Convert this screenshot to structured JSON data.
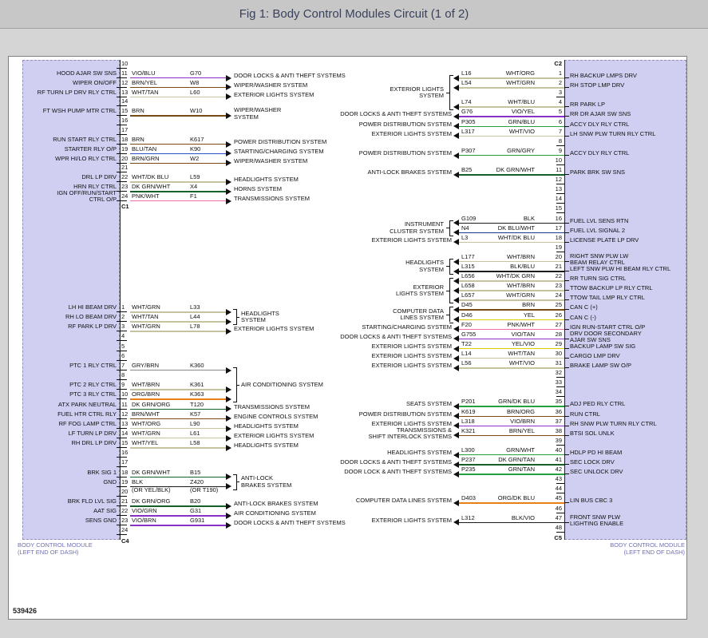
{
  "title": "Fig 1: Body Control Modules Circuit (1 of 2)",
  "figure_id": "539426",
  "left_module_caption": {
    "line1": "BODY CONTROL MODULE",
    "line2": "(LEFT END OF DASH)"
  },
  "right_module_caption": {
    "line1": "BODY CONTROL MODULE",
    "line2": "(LEFT END OF DASH)"
  },
  "wire_color_hex": {
    "VIO": "#8b2fc9",
    "BRN": "#7a4a15",
    "WHT": "#c6c3a0",
    "BLU": "#2a52cc",
    "DK GRN": "#14602b",
    "DK BLU": "#1f3a93",
    "PNK": "#f06eaa",
    "GRY": "#8a8a8a",
    "ORG": "#e87f1a",
    "BLK": "#1c1c1c",
    "YEL": "#ddcf00",
    "GRN": "#23a03f",
    "TAN": "#c9a06a"
  },
  "left_groups": [
    {
      "connector": "C1",
      "rows": [
        {
          "pin": "10"
        },
        {
          "pin": "11",
          "label": "HOOD AJAR SW SNS",
          "color": "VIO/BLU",
          "code": "G70",
          "dest": "DOOR LOCKS & ANTI THEFT SYSTEMS"
        },
        {
          "pin": "12",
          "label": "WIPER ON/OFF",
          "color": "BRN/YEL",
          "code": "W8",
          "dest": "WIPER/WASHER SYSTEM"
        },
        {
          "pin": "13",
          "label": "RF TURN LP DRV RLY CTRL",
          "color": "WHT/TAN",
          "code": "L60",
          "dest": "EXTERIOR LIGHTS SYSTEM"
        },
        {
          "pin": "14"
        },
        {
          "pin": "15",
          "label": "FT WSH PUMP MTR CTRL",
          "color": "BRN",
          "code": "W10",
          "dest": "WIPER/WASHER",
          "dest2": "SYSTEM"
        },
        {
          "pin": "16"
        },
        {
          "pin": "17"
        },
        {
          "pin": "18",
          "label": "RUN START RLY CTRL",
          "color": "BRN",
          "code": "K617",
          "dest": "POWER DISTRIBUTION SYSTEM"
        },
        {
          "pin": "19",
          "label": "STARTER RLY O/P",
          "color": "BLU/TAN",
          "code": "K90",
          "dest": "STARTING/CHARGING SYSTEM"
        },
        {
          "pin": "20",
          "label": "WPR HI/LO RLY CTRL",
          "color": "BRN/GRN",
          "code": "W2",
          "dest": "WIPER/WASHER SYSTEM"
        },
        {
          "pin": "21"
        },
        {
          "pin": "22",
          "label": "DRL LP DRV",
          "color": "WHT/DK BLU",
          "code": "L59",
          "dest": "HEADLIGHTS SYSTEM"
        },
        {
          "pin": "23",
          "label": "HRN RLY CTRL",
          "color": "DK GRN/WHT",
          "code": "X4",
          "dest": "HORNS SYSTEM"
        },
        {
          "pin": "24",
          "label": "IGN OFF/RUN/START",
          "label2": "CTRL O/P",
          "color": "PNK/WHT",
          "code": "F1",
          "dest": "TRANSMISSIONS SYSTEM"
        }
      ]
    },
    {
      "connector": "C4",
      "rows": [
        {
          "pin": "1",
          "label": "LH HI BEAM DRV",
          "color": "WHT/GRN",
          "code": "L33",
          "dest": "HEADLIGHTS",
          "dest2": "SYSTEM",
          "brace": 2
        },
        {
          "pin": "2",
          "label": "RH LO BEAM DRV",
          "color": "WHT/TAN",
          "code": "L44"
        },
        {
          "pin": "3",
          "label": "RF PARK LP DRV",
          "color": "WHT/GRN",
          "code": "L78",
          "dest": "EXTERIOR LIGHTS SYSTEM"
        },
        {
          "pin": "4"
        },
        {
          "pin": "5"
        },
        {
          "pin": "6"
        },
        {
          "pin": "7",
          "label": "PTC 1 RLY CTRL",
          "color": "GRY/BRN",
          "code": "K360",
          "dest": "AIR CONDITIONING SYSTEM",
          "brace": 4
        },
        {
          "pin": "8"
        },
        {
          "pin": "9",
          "label": "PTC 2 RLY CTRL",
          "color": "WHT/BRN",
          "code": "K361"
        },
        {
          "pin": "10",
          "label": "PTC 3 RLY CTRL",
          "color": "ORG/BRN",
          "code": "K363"
        },
        {
          "pin": "11",
          "label": "ATX PARK NEUTRAL",
          "color": "DK GRN/ORG",
          "code": "T120",
          "dest": "TRANSMISSIONS SYSTEM"
        },
        {
          "pin": "12",
          "label": "FUEL HTR CTRL RLY",
          "color": "BRN/WHT",
          "code": "K57",
          "dest": "ENGINE CONTROLS SYSTEM"
        },
        {
          "pin": "13",
          "label": "RF FOG LAMP CTRL",
          "color": "WHT/ORG",
          "code": "L90",
          "dest": "HEADLIGHTS SYSTEM"
        },
        {
          "pin": "14",
          "label": "LF TURN LP DRV",
          "color": "WHT/GRN",
          "code": "L61",
          "dest": "EXTERIOR LIGHTS SYSTEM"
        },
        {
          "pin": "15",
          "label": "RH DRL LP DRV",
          "color": "WHT/YEL",
          "code": "L58",
          "dest": "HEADLIGHTS SYSTEM"
        },
        {
          "pin": "16"
        },
        {
          "pin": "17"
        },
        {
          "pin": "18",
          "label": "BRK SIG 1",
          "color": "DK GRN/WHT",
          "code": "B15",
          "dest": "ANTI-LOCK",
          "dest2": "BRAKES SYSTEM",
          "brace": 2
        },
        {
          "pin": "19",
          "label": "GND",
          "color": "BLK",
          "color_alt": "(OR YEL/BLK)",
          "code": "Z420",
          "code_alt": "(OR T190)"
        },
        {
          "pin": "20"
        },
        {
          "pin": "21",
          "label": "BRK FLD LVL SIG",
          "color": "DK GRN/ORG",
          "code": "B20",
          "dest": "ANTI-LOCK BRAKES SYSTEM"
        },
        {
          "pin": "22",
          "label": "AAT SIG",
          "color": "VIO/GRN",
          "code": "G31",
          "dest": "AIR CONDITIONING SYSTEM"
        },
        {
          "pin": "23",
          "label": "SENS GND",
          "color": "VIO/BRN",
          "code": "G931",
          "dest": "DOOR LOCKS & ANTI THEFT SYSTEMS"
        },
        {
          "pin": "24"
        }
      ]
    }
  ],
  "right_connector": {
    "top": "C2",
    "bottom": "C5"
  },
  "right_rows": [
    {
      "pin": "1",
      "code": "L16",
      "color": "WHT/ORG",
      "sys": "EXTERIOR LIGHTS",
      "sys2": "SYSTEM",
      "brace": 4,
      "rlabel": "RH BACKUP LMPS DRV"
    },
    {
      "pin": "2",
      "code": "L54",
      "color": "WHT/GRN",
      "rlabel": "RH STOP LMP DRV"
    },
    {
      "pin": "3"
    },
    {
      "pin": "4",
      "code": "L74",
      "color": "WHT/BLU",
      "rlabel": "RR PARK LP"
    },
    {
      "pin": "5",
      "code": "G76",
      "color": "VIO/YEL",
      "sys": "DOOR LOCKS & ANTI THEFT SYSTEMS",
      "rlabel": "RR DR AJAR SW SNS"
    },
    {
      "pin": "6",
      "code": "P305",
      "color": "GRN/BLU",
      "sys": "POWER DISTRIBUTION SYSTEM",
      "rlabel": "ACCY DLY RLY CTRL"
    },
    {
      "pin": "7",
      "code": "L317",
      "color": "WHT/VIO",
      "sys": "EXTERIOR LIGHTS SYSTEM",
      "rlabel": "LH SNW PLW TURN RLY CTRL"
    },
    {
      "pin": "8"
    },
    {
      "pin": "9",
      "code": "P307",
      "color": "GRN/GRY",
      "sys": "POWER DISTRIBUTION SYSTEM",
      "rlabel": "ACCY DLY RLY CTRL"
    },
    {
      "pin": "10"
    },
    {
      "pin": "11",
      "code": "B25",
      "color": "DK GRN/WHT",
      "sys": "ANTI-LOCK BRAKES SYSTEM",
      "rlabel": "PARK BRK SW SNS"
    },
    {
      "pin": "12"
    },
    {
      "pin": "13"
    },
    {
      "pin": "14"
    },
    {
      "pin": "15"
    },
    {
      "pin": "16",
      "code": "G109",
      "color": "BLK",
      "sys": "INSTRUMENT",
      "sys2": "CLUSTER SYSTEM",
      "brace": 2,
      "rlabel": "FUEL LVL SENS RTN"
    },
    {
      "pin": "17",
      "code": "N4",
      "color": "DK BLU/WHT",
      "rlabel": "FUEL LVL SIGNAL 2"
    },
    {
      "pin": "18",
      "code": "L3",
      "color": "WHT/DK BLU",
      "sys": "EXTERIOR LIGHTS SYSTEM",
      "rlabel": "LICENSE PLATE LP DRV"
    },
    {
      "pin": "19"
    },
    {
      "pin": "20",
      "code": "L177",
      "color": "WHT/BRN",
      "sys": "HEADLIGHTS",
      "sys2": "SYSTEM",
      "brace": 2,
      "rlabel": "RIGHT SNW PLW LW",
      "rlabel2": "BEAM RELAY CTRL"
    },
    {
      "pin": "21",
      "code": "L315",
      "color": "BLK/BLU",
      "rlabel": "LEFT SNW PLW HI BEAM RLY CTRL"
    },
    {
      "pin": "22",
      "code": "L656",
      "color": "WHT/DK GRN",
      "sys": "EXTERIOR",
      "sys2": "LIGHTS SYSTEM",
      "brace": 3,
      "rlabel": "RR TURN SIG CTRL"
    },
    {
      "pin": "23",
      "code": "L658",
      "color": "WHT/BRN",
      "rlabel": "TTOW BACKUP LP RLY CTRL"
    },
    {
      "pin": "24",
      "code": "L657",
      "color": "WHT/GRN",
      "rlabel": "TTOW TAIL LMP RLY CTRL"
    },
    {
      "pin": "25",
      "code": "D45",
      "color": "BRN",
      "sys": "COMPUTER DATA",
      "sys2": "LINES SYSTEM",
      "brace": 2,
      "rlabel": "CAN C (+)"
    },
    {
      "pin": "26",
      "code": "D46",
      "color": "YEL",
      "rlabel": "CAN C (-)"
    },
    {
      "pin": "27",
      "code": "F20",
      "color": "PNK/WHT",
      "sys": "STARTING/CHARGING SYSTEM",
      "rlabel": "IGN RUN-START CTRL O/P"
    },
    {
      "pin": "28",
      "code": "G755",
      "color": "VIO/TAN",
      "sys": "DOOR LOCKS & ANTI THEFT SYSTEMS",
      "rlabel": "DRV DOOR SECONDARY",
      "rlabel2": "AJAR SW SNS"
    },
    {
      "pin": "29",
      "code": "T22",
      "color": "YEL/VIO",
      "sys": "EXTERIOR LIGHTS SYSTEM",
      "rlabel": "BACKUP LAMP SW SIG"
    },
    {
      "pin": "30",
      "code": "L14",
      "color": "WHT/TAN",
      "sys": "EXTERIOR LIGHTS SYSTEM",
      "rlabel": "CARGO LMP DRV"
    },
    {
      "pin": "31",
      "code": "L56",
      "color": "WHT/VIO",
      "sys": "EXTERIOR LIGHTS SYSTEM",
      "rlabel": "BRAKE LAMP SW O/P"
    },
    {
      "pin": "32"
    },
    {
      "pin": "33"
    },
    {
      "pin": "34"
    },
    {
      "pin": "35",
      "code": "P201",
      "color": "GRN/DK BLU",
      "sys": "SEATS SYSTEM",
      "rlabel": "ADJ PED RLY CTRL"
    },
    {
      "pin": "36",
      "code": "K619",
      "color": "BRN/ORG",
      "sys": "POWER DISTRIBUTION SYSTEM",
      "rlabel": "RUN CTRL"
    },
    {
      "pin": "37",
      "code": "L318",
      "color": "VIO/BRN",
      "sys": "EXTERIOR LIGHTS SYSTEM",
      "rlabel": "RH SNW PLW TURN RLY CTRL"
    },
    {
      "pin": "38",
      "code": "K321",
      "color": "BRN/YEL",
      "sys": "TRANSMISSIONS &",
      "sys2": "SHIFT INTERLOCK SYSTEMS",
      "rlabel": "BTSI SOL UNLK"
    },
    {
      "pin": "39"
    },
    {
      "pin": "40",
      "code": "L300",
      "color": "GRN/WHT",
      "sys": "HEADLIGHTS SYSTEM",
      "rlabel": "HDLP PD HI BEAM"
    },
    {
      "pin": "41",
      "code": "P237",
      "color": "DK GRN/TAN",
      "sys": "DOOR LOCKS & ANTI THEFT SYSTEMS",
      "rlabel": "SEC LOCK DRV"
    },
    {
      "pin": "42",
      "code": "P235",
      "color": "GRN/TAN",
      "sys": "DOOR LOCK & ANTI THEFT SYSTEMS",
      "rlabel": "SEC UNLOCK DRV"
    },
    {
      "pin": "43"
    },
    {
      "pin": "44"
    },
    {
      "pin": "45",
      "code": "D403",
      "color": "ORG/DK BLU",
      "sys": "COMPUTER DATA LINES SYSTEM",
      "rlabel": "LIN BUS CBC 3"
    },
    {
      "pin": "46"
    },
    {
      "pin": "47",
      "code": "L312",
      "color": "BLK/VIO",
      "sys": "EXTERIOR LIGHTS SYSTEM",
      "rlabel": "FRONT SNW PLW",
      "rlabel2": "LIGHTING ENABLE"
    },
    {
      "pin": "48"
    }
  ]
}
